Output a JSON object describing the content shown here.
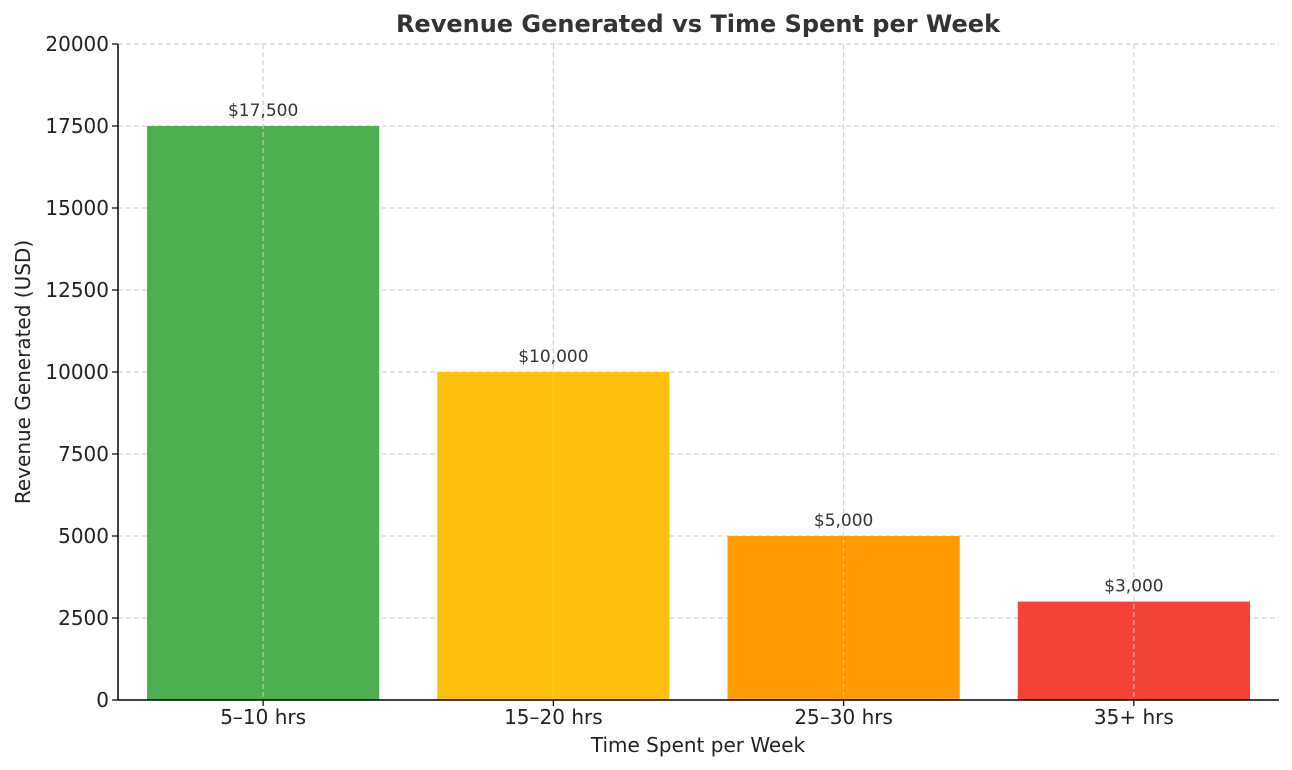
{
  "chart_data": {
    "type": "bar",
    "title": "Revenue Generated vs Time Spent per Week",
    "xlabel": "Time Spent per Week",
    "ylabel": "Revenue Generated (USD)",
    "categories": [
      "5–10 hrs",
      "15–20 hrs",
      "25–30 hrs",
      "35+ hrs"
    ],
    "values": [
      17500,
      10000,
      5000,
      3000
    ],
    "data_labels": [
      "$17,500",
      "$10,000",
      "$5,000",
      "$3,000"
    ],
    "colors": [
      "#4caf50",
      "#fdc00d",
      "#ff9a00",
      "#f44336"
    ],
    "ylim": [
      0,
      20000
    ],
    "yticks": [
      0,
      2500,
      5000,
      7500,
      10000,
      12500,
      15000,
      17500,
      20000
    ],
    "ytick_labels": [
      "0",
      "2500",
      "5000",
      "7500",
      "10000",
      "12500",
      "15000",
      "17500",
      "20000"
    ],
    "grid": true
  }
}
